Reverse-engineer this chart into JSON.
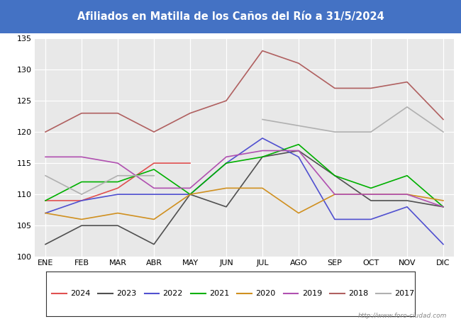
{
  "title": "Afiliados en Matilla de los Caños del Río a 31/5/2024",
  "title_color": "#ffffff",
  "title_bg_color": "#4472c4",
  "months": [
    "ENE",
    "FEB",
    "MAR",
    "ABR",
    "MAY",
    "JUN",
    "JUL",
    "AGO",
    "SEP",
    "OCT",
    "NOV",
    "DIC"
  ],
  "ylim": [
    100,
    135
  ],
  "yticks": [
    100,
    105,
    110,
    115,
    120,
    125,
    130,
    135
  ],
  "series": {
    "2024": {
      "color": "#e05050",
      "data": [
        109,
        109,
        111,
        115,
        115,
        null,
        null,
        null,
        null,
        null,
        null,
        null
      ]
    },
    "2023": {
      "color": "#505050",
      "data": [
        102,
        105,
        105,
        102,
        110,
        108,
        116,
        117,
        113,
        109,
        109,
        108
      ]
    },
    "2022": {
      "color": "#5050d0",
      "data": [
        107,
        109,
        110,
        110,
        110,
        115,
        119,
        116,
        106,
        106,
        108,
        102
      ]
    },
    "2021": {
      "color": "#00b000",
      "data": [
        109,
        112,
        112,
        114,
        110,
        115,
        116,
        118,
        113,
        111,
        113,
        108
      ]
    },
    "2020": {
      "color": "#d09020",
      "data": [
        107,
        106,
        107,
        106,
        110,
        111,
        111,
        107,
        110,
        110,
        110,
        109
      ]
    },
    "2019": {
      "color": "#b050b0",
      "data": [
        116,
        116,
        115,
        111,
        111,
        116,
        117,
        117,
        110,
        110,
        110,
        108
      ]
    },
    "2018": {
      "color": "#b06060",
      "data": [
        120,
        123,
        123,
        120,
        123,
        125,
        133,
        131,
        127,
        127,
        128,
        122
      ]
    },
    "2017": {
      "color": "#b0b0b0",
      "data": [
        113,
        110,
        113,
        113,
        null,
        null,
        122,
        121,
        120,
        120,
        124,
        120
      ]
    }
  },
  "legend_order": [
    "2024",
    "2023",
    "2022",
    "2021",
    "2020",
    "2019",
    "2018",
    "2017"
  ],
  "watermark": "http://www.foro-ciudad.com",
  "bg_plot": "#e8e8e8",
  "grid_color": "#ffffff"
}
